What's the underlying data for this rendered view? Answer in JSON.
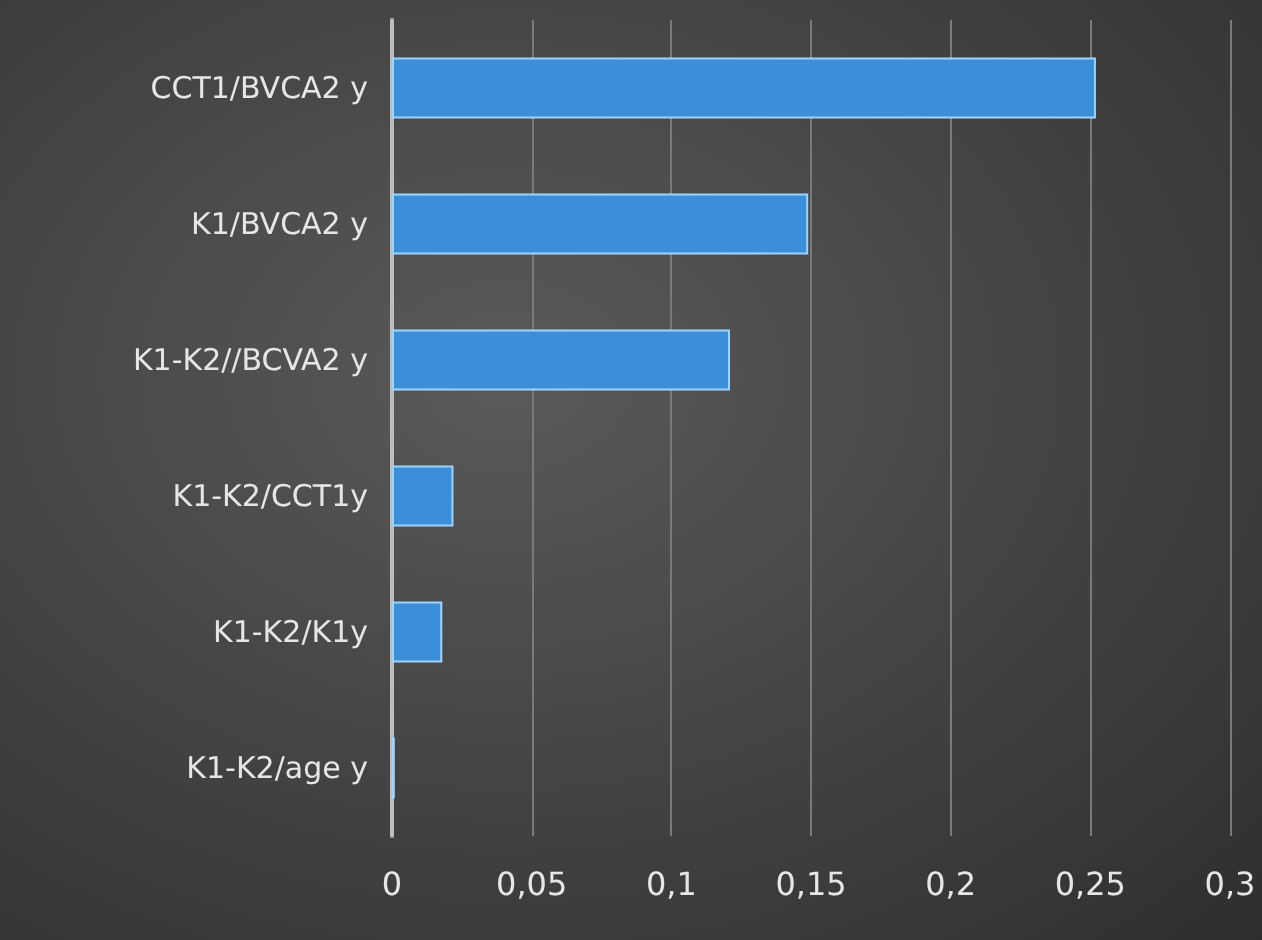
{
  "chart_data": {
    "type": "bar",
    "orientation": "horizontal",
    "categories": [
      "CCT1/BVCA2 y",
      "K1/BVCA2 y",
      "K1-K2//BCVA2 y",
      "K1-K2/CCT1y",
      "K1-K2/K1y",
      "K1-K2/age y"
    ],
    "values": [
      0.252,
      0.149,
      0.121,
      0.022,
      0.018,
      0.001
    ],
    "color": "#3b8fd8",
    "xlim": [
      0,
      0.3
    ],
    "xticks": [
      {
        "value": 0,
        "label": "0"
      },
      {
        "value": 0.05,
        "label": "0,05"
      },
      {
        "value": 0.1,
        "label": "0,1"
      },
      {
        "value": 0.15,
        "label": "0,15"
      },
      {
        "value": 0.2,
        "label": "0,2"
      },
      {
        "value": 0.25,
        "label": "0,25"
      },
      {
        "value": 0.3,
        "label": "0,3"
      }
    ],
    "grid": "x"
  }
}
